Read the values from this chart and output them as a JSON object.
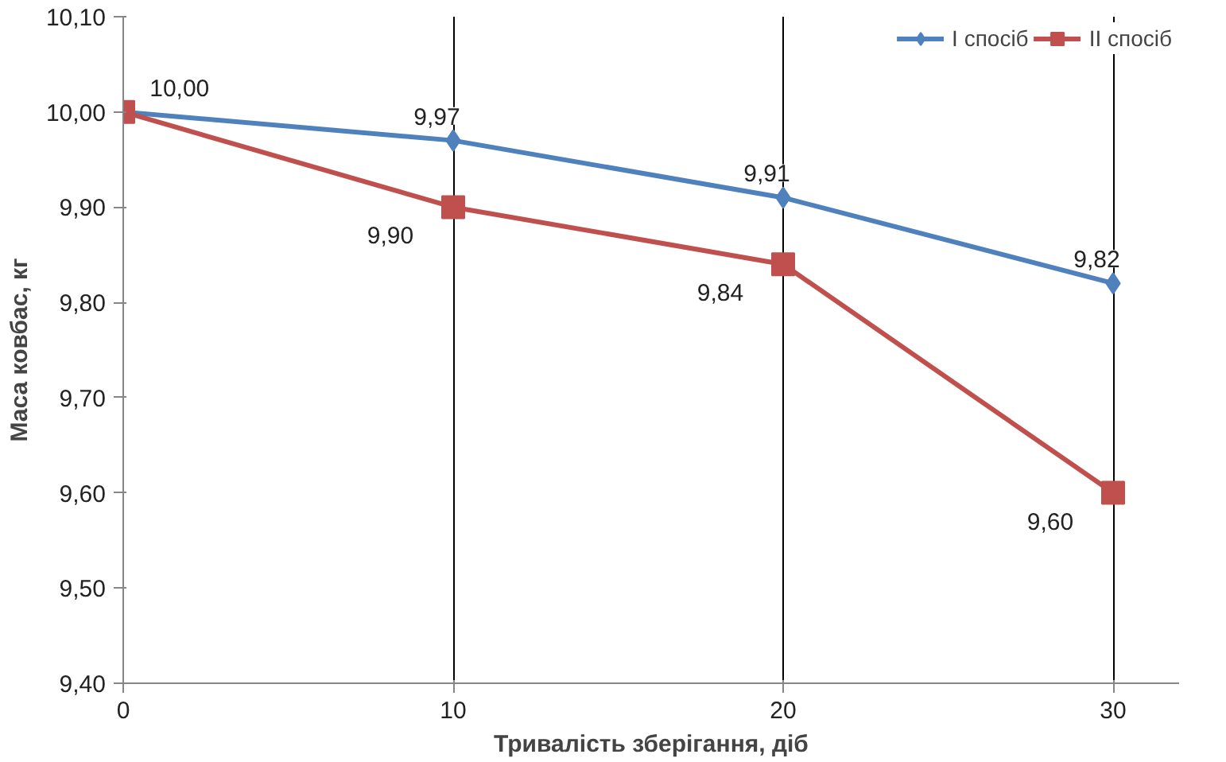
{
  "chart_data": {
    "type": "line",
    "xlabel": "Тривалість зберігання, діб",
    "ylabel": "Маса ковбас, кг",
    "x": [
      0,
      10,
      20,
      30
    ],
    "series": [
      {
        "name": "I спосіб",
        "color": "#4f81bd",
        "marker": "diamond",
        "values": [
          10.0,
          9.97,
          9.91,
          9.82
        ],
        "value_labels": [
          "10,00",
          "9,97",
          "9,91",
          "9,82"
        ]
      },
      {
        "name": "II спосіб",
        "color": "#c0504d",
        "marker": "square",
        "values": [
          10.0,
          9.9,
          9.84,
          9.6
        ],
        "value_labels": [
          null,
          "9,90",
          "9,84",
          "9,60"
        ]
      }
    ],
    "xlim": [
      0,
      32
    ],
    "xticks": [
      0,
      10,
      20,
      30
    ],
    "ylim": [
      9.4,
      10.1
    ],
    "yticks": [
      {
        "value": 9.4,
        "label": "9,40"
      },
      {
        "value": 9.5,
        "label": "9,50"
      },
      {
        "value": 9.6,
        "label": "9,60"
      },
      {
        "value": 9.7,
        "label": "9,70"
      },
      {
        "value": 9.8,
        "label": "9,80"
      },
      {
        "value": 9.9,
        "label": "9,90"
      },
      {
        "value": 10.0,
        "label": "10,00"
      },
      {
        "value": 10.1,
        "label": "10,10"
      }
    ],
    "grid": "x",
    "legend": "top right",
    "line_style": "solid"
  }
}
